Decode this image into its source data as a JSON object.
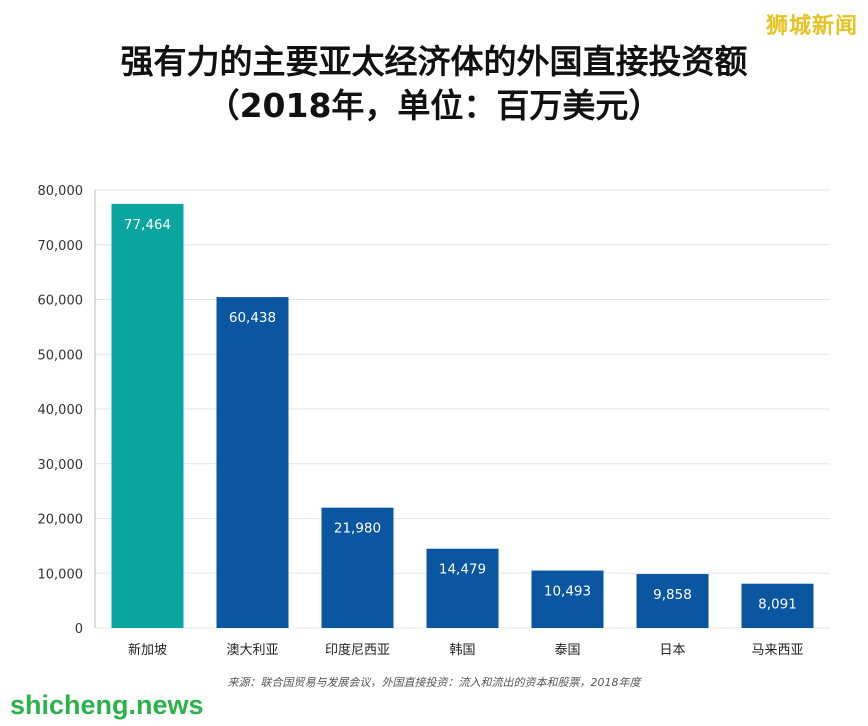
{
  "watermark_top": "狮城新闻",
  "watermark_bottom": "shicheng.news",
  "title_line1": "强有力的主要亚太经济体的外国直接投资额",
  "title_line2": "（2018年，单位：百万美元）",
  "source": "来源：联合国贸易与发展会议，外国直接投资：流入和流出的资本和股票，2018年度",
  "colors": {
    "teal": "#0aa59e",
    "blue": "#0a56a0",
    "grid": "#e6e6e6",
    "axis": "#555555"
  },
  "chart_data": {
    "type": "bar",
    "categories": [
      "新加坡",
      "澳大利亚",
      "印度尼西亚",
      "韩国",
      "泰国",
      "日本",
      "马来西亚"
    ],
    "values": [
      77464,
      60438,
      21980,
      14479,
      10493,
      9858,
      8091
    ],
    "value_labels": [
      "77,464",
      "60,438",
      "21,980",
      "14,479",
      "10,493",
      "9,858",
      "8,091"
    ],
    "bar_colors": [
      "#0aa59e",
      "#0a56a0",
      "#0a56a0",
      "#0a56a0",
      "#0a56a0",
      "#0a56a0",
      "#0a56a0"
    ],
    "yticks": [
      0,
      10000,
      20000,
      30000,
      40000,
      50000,
      60000,
      70000,
      80000
    ],
    "ytick_labels": [
      "0",
      "10,000",
      "20,000",
      "30,000",
      "40,000",
      "50,000",
      "60,000",
      "70,000",
      "80,000"
    ],
    "ylim": [
      0,
      80000
    ],
    "grid": true
  }
}
